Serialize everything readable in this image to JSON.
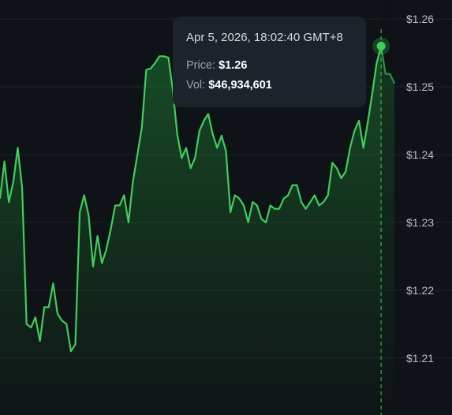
{
  "tooltip": {
    "date": "Apr 5, 2026, 18:02:40 GMT+8",
    "price_label": "Price:",
    "price_value": "$1.26",
    "vol_label": "Vol:",
    "vol_value": "$46,934,601"
  },
  "chart_data": {
    "type": "area",
    "title": "",
    "xlabel": "",
    "ylabel": "",
    "y_tick_labels": [
      "$1.26",
      "$1.25",
      "$1.24",
      "$1.23",
      "$1.22",
      "$1.21"
    ],
    "y_ticks": [
      1.26,
      1.25,
      1.24,
      1.23,
      1.22,
      1.21
    ],
    "ylim": [
      1.2016,
      1.2628
    ],
    "grid": true,
    "line_color": "#3ecf5b",
    "fill_color": "#1e7a33",
    "series": [
      {
        "values": [
          1.2335,
          1.239,
          1.233,
          1.236,
          1.241,
          1.235,
          1.215,
          1.2145,
          1.216,
          1.2125,
          1.2175,
          1.2175,
          1.221,
          1.2165,
          1.2155,
          1.215,
          1.211,
          1.212,
          1.2315,
          1.234,
          1.231,
          1.2235,
          1.228,
          1.224,
          1.226,
          1.229,
          1.2325,
          1.2325,
          1.234,
          1.23,
          1.236,
          1.24,
          1.244,
          1.2525,
          1.2527,
          1.2535,
          1.2545,
          1.2545,
          1.2543,
          1.2495,
          1.243,
          1.2395,
          1.241,
          1.238,
          1.2395,
          1.2435,
          1.245,
          1.246,
          1.243,
          1.241,
          1.2428,
          1.2405,
          1.2315,
          1.234,
          1.2335,
          1.2325,
          1.23,
          1.233,
          1.2325,
          1.2305,
          1.23,
          1.2325,
          1.232,
          1.232,
          1.2335,
          1.234,
          1.2355,
          1.2355,
          1.233,
          1.232,
          1.233,
          1.234,
          1.2325,
          1.233,
          1.234,
          1.2388,
          1.238,
          1.2365,
          1.2375,
          1.241,
          1.2435,
          1.245,
          1.241,
          1.2448,
          1.249,
          1.2535,
          1.256,
          1.2519,
          1.2519,
          1.2505
        ]
      }
    ],
    "highlight": {
      "index": 86,
      "value": 1.256
    }
  }
}
